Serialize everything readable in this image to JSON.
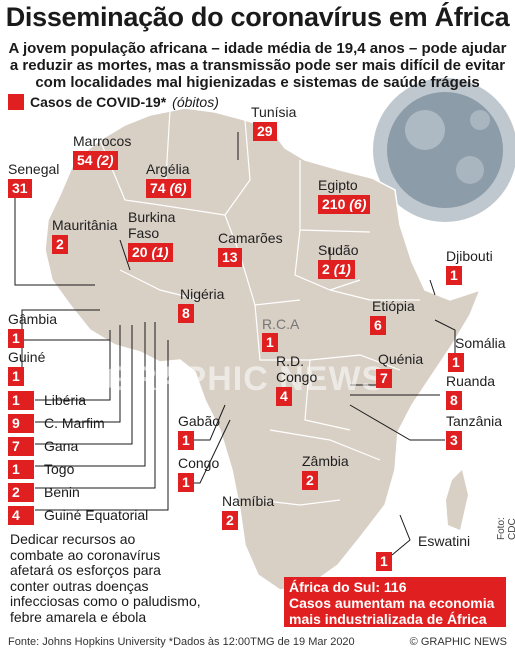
{
  "title": "Disseminação do coronavírus em África",
  "subtitle_lines": [
    "A jovem população africana – idade média de 19,4 anos – pode ajudar",
    "a reduzir as mortes, mas a transmissão pode ser mais difícil de evitar",
    "com localidades mal higienizadas e sistemas de saúde frágeis"
  ],
  "legend": {
    "label": "Casos de COVID-19*",
    "sub": "(óbitos)",
    "color": "#e02020"
  },
  "countries": {
    "tunisia": {
      "name": "Tunísia",
      "cases": "29"
    },
    "marrocos": {
      "name": "Marrocos",
      "cases": "54",
      "deaths": "(2)"
    },
    "senegal": {
      "name": "Senegal",
      "cases": "31"
    },
    "argelia": {
      "name": "Argélia",
      "cases": "74",
      "deaths": "(6)"
    },
    "egipto": {
      "name": "Egipto",
      "cases": "210",
      "deaths": "(6)"
    },
    "mauritania": {
      "name": "Mauritânia",
      "cases": "2"
    },
    "burkina": {
      "name_l1": "Burkina",
      "name_l2": "Faso",
      "cases": "20",
      "deaths": "(1)"
    },
    "camaroes": {
      "name": "Camarões",
      "cases": "13"
    },
    "sudao": {
      "name": "Sudão",
      "cases": "2",
      "deaths": "(1)"
    },
    "djibouti": {
      "name": "Djibouti",
      "cases": "1"
    },
    "nigeria": {
      "name": "Nigéria",
      "cases": "8"
    },
    "rca": {
      "name": "R.C.A",
      "cases": "1"
    },
    "etiopia": {
      "name": "Etiópia",
      "cases": "6"
    },
    "gambia": {
      "name": "Gâmbia",
      "cases": "1"
    },
    "guine": {
      "name": "Guiné",
      "cases": "1"
    },
    "somalia": {
      "name": "Somália",
      "cases": "1"
    },
    "rdcongo": {
      "name_l1": "R.D.",
      "name_l2": "Congo",
      "cases": "4"
    },
    "quenia": {
      "name": "Quénia",
      "cases": "7"
    },
    "ruanda": {
      "name": "Ruanda",
      "cases": "8"
    },
    "tanzania": {
      "name": "Tanzânia",
      "cases": "3"
    },
    "gabao": {
      "name": "Gabão",
      "cases": "1"
    },
    "congo": {
      "name": "Congo",
      "cases": "1"
    },
    "zambia": {
      "name": "Zâmbia",
      "cases": "2"
    },
    "namibia": {
      "name": "Namíbia",
      "cases": "2"
    },
    "eswatini": {
      "name": "Eswatini",
      "cases": "1"
    }
  },
  "west_list": [
    {
      "cases": "1",
      "name": "Libéria"
    },
    {
      "cases": "9",
      "name": "C. Marfim"
    },
    {
      "cases": "7",
      "name": "Gana"
    },
    {
      "cases": "1",
      "name": "Togo"
    },
    {
      "cases": "2",
      "name": "Benin"
    },
    {
      "cases": "4",
      "name": "Guiné Equatorial"
    }
  ],
  "note_lines": [
    "Dedicar recursos ao",
    "combate ao coronavírus",
    "afetará os esforços para",
    "conter outras doenças",
    "infecciosas como o paludismo,",
    "febre amarela e ébola"
  ],
  "south_africa": {
    "line1": "África do Sul: 116",
    "line2": "Casos aumentam na economia",
    "line3": "mais industrializada de África"
  },
  "source": "Fonte: Johns Hopkins University *Dados às 12:00TMG de 19 Mar 2020",
  "credit": "© GRAPHIC NEWS",
  "photo_credit": "Foto: CDC",
  "watermark": "GRAPHIC NEWS",
  "colors": {
    "land": "#d8cfc5",
    "border": "#ffffff",
    "accent": "#e02020"
  }
}
